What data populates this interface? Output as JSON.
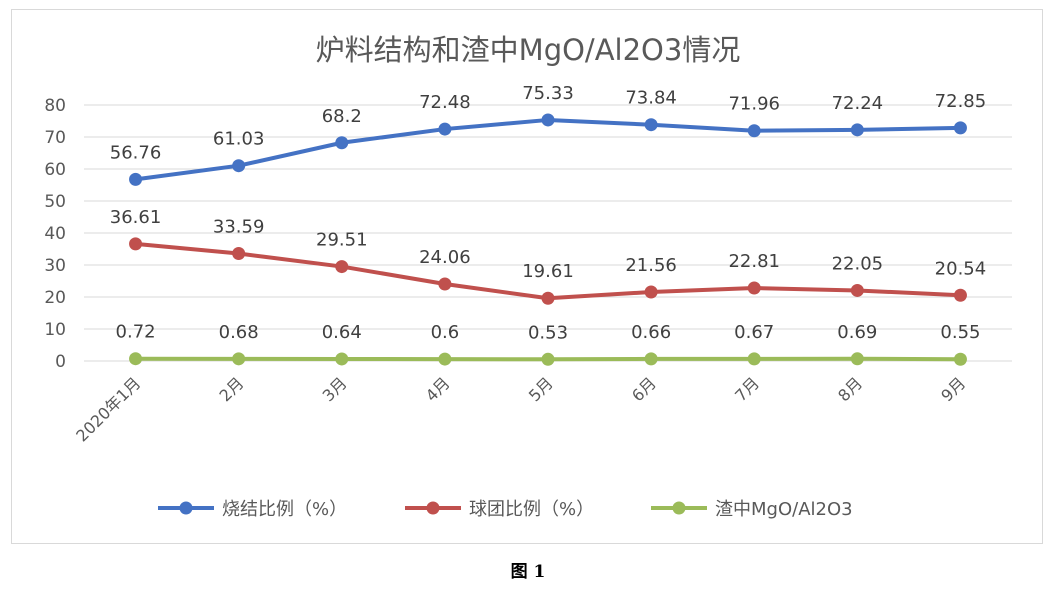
{
  "caption": "图 1",
  "chart_data": {
    "type": "line",
    "title": "炉料结构和渣中MgO/Al2O3情况",
    "xlabel": "",
    "ylabel": "",
    "ylim": [
      0,
      80
    ],
    "yticks": [
      0,
      10,
      20,
      30,
      40,
      50,
      60,
      70,
      80
    ],
    "grid": true,
    "legend_position": "bottom",
    "categories": [
      "2020年1月",
      "2月",
      "3月",
      "4月",
      "5月",
      "6月",
      "7月",
      "8月",
      "9月"
    ],
    "series": [
      {
        "name": "烧结比例（%）",
        "color": "#4472C4",
        "values": [
          56.76,
          61.03,
          68.2,
          72.48,
          75.33,
          73.84,
          71.96,
          72.24,
          72.85
        ],
        "labels": [
          "56.76",
          "61.03",
          "68.2",
          "72.48",
          "75.33",
          "73.84",
          "71.96",
          "72.24",
          "72.85"
        ]
      },
      {
        "name": "球团比例（%）",
        "color": "#C0504D",
        "values": [
          36.61,
          33.59,
          29.51,
          24.06,
          19.61,
          21.56,
          22.81,
          22.05,
          20.54
        ],
        "labels": [
          "36.61",
          "33.59",
          "29.51",
          "24.06",
          "19.61",
          "21.56",
          "22.81",
          "22.05",
          "20.54"
        ]
      },
      {
        "name": "渣中MgO/Al2O3",
        "color": "#9BBB59",
        "values": [
          0.72,
          0.68,
          0.64,
          0.6,
          0.53,
          0.66,
          0.67,
          0.69,
          0.55
        ],
        "labels": [
          "0.72",
          "0.68",
          "0.64",
          "0.6",
          "0.53",
          "0.66",
          "0.67",
          "0.69",
          "0.55"
        ]
      }
    ]
  }
}
